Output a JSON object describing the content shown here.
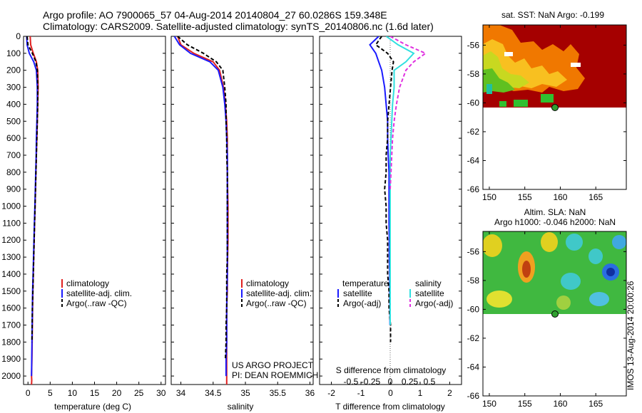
{
  "header": {
    "line1": "Argo profile: AO 7900065_57 04-Aug-2014 20140804_27 60.0286S 159.348E",
    "line2": "Climatology: CARS2009. Satellite-adjusted climatology: synTS_20140806.nc (1.6d later)"
  },
  "colors": {
    "climatology": "#e02020",
    "satellite": "#1a1aff",
    "argo": "#000000",
    "satellite_s": "#30e0e0",
    "argo_s": "#e030e0"
  },
  "depth_ticks": [
    0,
    100,
    200,
    300,
    400,
    500,
    600,
    700,
    800,
    900,
    1000,
    1100,
    1200,
    1300,
    1400,
    1500,
    1600,
    1700,
    1800,
    1900,
    2000
  ],
  "panels": {
    "temperature": {
      "xlabel": "temperature (deg C)",
      "xticks": [
        "0",
        "5",
        "10",
        "15",
        "20",
        "25",
        "30"
      ]
    },
    "salinity": {
      "xlabel": "salinity",
      "xticks": [
        "34",
        "34.5",
        "35",
        "35.5",
        "36"
      ],
      "note1": "US ARGO PROJECT",
      "note2": "PI: DEAN ROEMMICH"
    },
    "difference": {
      "xlabel": "T difference from climatology",
      "xticks": [
        "-2",
        "-1",
        "0",
        "1",
        "2"
      ],
      "s_title": "S difference from climatology",
      "s_ticks": [
        "-0.5",
        "-0.25",
        "0",
        "0.25",
        "0.5"
      ]
    }
  },
  "legend_profile": {
    "items": [
      "climatology",
      "satellite-adj. clim.",
      "Argo(..raw -QC)"
    ]
  },
  "legend_diff": {
    "t_header": "temperature",
    "s_header": "salinity",
    "t_items": [
      "satellite",
      "Argo(-adj)"
    ],
    "s_items": [
      "satellite",
      "Argo(-adj)"
    ]
  },
  "maps": {
    "sst": {
      "title": "sat. SST: NaN Argo: -0.199"
    },
    "sla": {
      "title1": "Altim. SLA: NaN",
      "title2": "Argo h1000: -0.046 h2000: NaN"
    },
    "lat_ticks": [
      "-56",
      "-58",
      "-60",
      "-62",
      "-64",
      "-66"
    ],
    "lon_ticks": [
      "150",
      "155",
      "160",
      "165"
    ]
  },
  "watermark": "IMOS 13-Aug-2014 20:00:26",
  "chart_data": [
    {
      "type": "line",
      "xlabel": "temperature (deg C)",
      "xlim": [
        -1,
        31
      ],
      "ylim": [
        2050,
        0
      ],
      "y_reversed": true,
      "series": [
        {
          "name": "climatology",
          "x": [
            0.5,
            0.6,
            1.2,
            1.9,
            2.2,
            2.3,
            2.2,
            2.1,
            2.0,
            1.9,
            1.8,
            1.7,
            1.6,
            1.5,
            1.4,
            1.3,
            1.2,
            1.1,
            1.05,
            1.0,
            0.95,
            0.9,
            0.85,
            0.8,
            0.85,
            0.8
          ],
          "y": [
            0,
            50,
            100,
            150,
            200,
            300,
            400,
            500,
            600,
            700,
            800,
            900,
            1000,
            1100,
            1200,
            1300,
            1400,
            1500,
            1600,
            1700,
            1800,
            1900,
            1950,
            2000,
            2025,
            2050
          ]
        },
        {
          "name": "satellite-adj. clim.",
          "x": [
            -0.3,
            -0.2,
            0.3,
            1.3,
            1.9,
            2.1,
            2.1,
            2.0,
            1.9,
            1.85,
            1.75,
            1.65,
            1.55,
            1.45,
            1.35,
            1.25,
            1.15,
            1.05,
            1.0,
            0.95,
            0.9,
            0.85,
            0.8
          ],
          "y": [
            0,
            50,
            100,
            150,
            200,
            300,
            400,
            500,
            600,
            700,
            800,
            900,
            1000,
            1100,
            1200,
            1300,
            1400,
            1500,
            1600,
            1700,
            1800,
            1900,
            2000
          ]
        },
        {
          "name": "Argo(..raw -QC)",
          "x": [
            -0.2,
            0.0,
            1.0,
            1.8,
            2.1,
            2.2,
            2.2,
            2.1,
            2.0,
            1.9,
            1.8,
            1.7,
            1.6,
            1.5,
            1.4,
            1.3,
            1.2,
            1.1,
            1.0,
            0.95,
            0.9
          ],
          "y": [
            0,
            50,
            100,
            150,
            200,
            300,
            400,
            500,
            600,
            700,
            800,
            900,
            1000,
            1100,
            1200,
            1300,
            1400,
            1500,
            1600,
            1700,
            1800
          ]
        }
      ]
    },
    {
      "type": "line",
      "xlabel": "salinity",
      "xlim": [
        33.85,
        36.05
      ],
      "ylim": [
        2050,
        0
      ],
      "y_reversed": true,
      "series": [
        {
          "name": "climatology",
          "x": [
            33.95,
            34.0,
            34.2,
            34.5,
            34.6,
            34.66,
            34.69,
            34.71,
            34.72,
            34.72,
            34.72,
            34.725,
            34.73,
            34.73,
            34.73,
            34.725,
            34.72,
            34.72,
            34.71,
            34.71,
            34.71,
            34.71,
            34.71
          ],
          "y": [
            0,
            50,
            100,
            150,
            200,
            300,
            400,
            500,
            600,
            700,
            800,
            900,
            1000,
            1100,
            1200,
            1300,
            1400,
            1500,
            1600,
            1700,
            1800,
            1900,
            2050
          ]
        },
        {
          "name": "satellite-adj. clim.",
          "x": [
            33.9,
            33.98,
            34.15,
            34.45,
            34.58,
            34.65,
            34.68,
            34.7,
            34.71,
            34.72,
            34.72,
            34.72,
            34.72,
            34.72,
            34.72,
            34.72,
            34.72,
            34.715,
            34.71,
            34.71,
            34.71,
            34.7,
            34.7
          ],
          "y": [
            0,
            50,
            100,
            150,
            200,
            300,
            400,
            500,
            600,
            700,
            800,
            900,
            1000,
            1100,
            1200,
            1300,
            1400,
            1500,
            1600,
            1700,
            1800,
            1900,
            2000
          ]
        },
        {
          "name": "Argo(..raw -QC)",
          "x": [
            33.95,
            34.1,
            34.35,
            34.55,
            34.65,
            34.68,
            34.7,
            34.7,
            34.71,
            34.71,
            34.72,
            34.72,
            34.72,
            34.72,
            34.72,
            34.72,
            34.71,
            34.71,
            34.71,
            34.7,
            34.7,
            34.69
          ],
          "y": [
            0,
            50,
            100,
            150,
            200,
            300,
            400,
            500,
            600,
            700,
            800,
            900,
            1000,
            1100,
            1200,
            1300,
            1400,
            1500,
            1600,
            1700,
            1800,
            1900
          ]
        }
      ]
    },
    {
      "type": "line",
      "xlabel": "T difference from climatology",
      "xlim": [
        -2.4,
        2.4
      ],
      "ylim": [
        2050,
        0
      ],
      "y_reversed": true,
      "series": [
        {
          "name": "temperature satellite",
          "x": [
            -0.4,
            -0.7,
            -0.5,
            -0.4,
            -0.3,
            -0.2,
            -0.15,
            -0.1,
            -0.1,
            -0.08,
            -0.05,
            -0.05,
            -0.05,
            -0.05,
            -0.04,
            -0.04,
            -0.03,
            -0.03,
            -0.02,
            -0.02
          ],
          "y": [
            0,
            50,
            100,
            150,
            200,
            300,
            400,
            500,
            600,
            700,
            800,
            900,
            1000,
            1100,
            1200,
            1300,
            1400,
            1500,
            1600,
            1700
          ]
        },
        {
          "name": "temperature Argo(-adj)",
          "x": [
            -0.3,
            -0.5,
            -0.1,
            0.1,
            0.05,
            0.0,
            -0.05,
            -0.1,
            -0.1,
            -0.15,
            -0.15,
            -0.2,
            -0.15,
            -0.15,
            -0.1,
            -0.1,
            -0.1,
            -0.05,
            -0.05,
            0.0,
            0.0
          ],
          "y": [
            0,
            50,
            100,
            150,
            200,
            300,
            400,
            500,
            600,
            700,
            800,
            900,
            1000,
            1100,
            1200,
            1300,
            1400,
            1500,
            1600,
            1700,
            1800
          ]
        },
        {
          "name": "salinity satellite",
          "x": [
            -0.05,
            0.1,
            0.3,
            0.2,
            0.05,
            0.05,
            0.03,
            0.02,
            0.01,
            0.0,
            0.0,
            0.0,
            0.0,
            0.0,
            0.0,
            0.0,
            0.0,
            0.0,
            0.0,
            0.0
          ],
          "y": [
            0,
            50,
            100,
            150,
            200,
            300,
            400,
            500,
            600,
            700,
            800,
            900,
            1000,
            1100,
            1200,
            1300,
            1400,
            1500,
            1600,
            1700
          ]
        },
        {
          "name": "salinity Argo(-adj)",
          "x": [
            0.0,
            0.2,
            0.45,
            0.3,
            0.2,
            0.12,
            0.08,
            0.05,
            0.03,
            0.02,
            0.01,
            0.0
          ],
          "y": [
            0,
            50,
            100,
            150,
            200,
            300,
            400,
            500,
            600,
            700,
            800,
            900
          ]
        }
      ]
    }
  ]
}
